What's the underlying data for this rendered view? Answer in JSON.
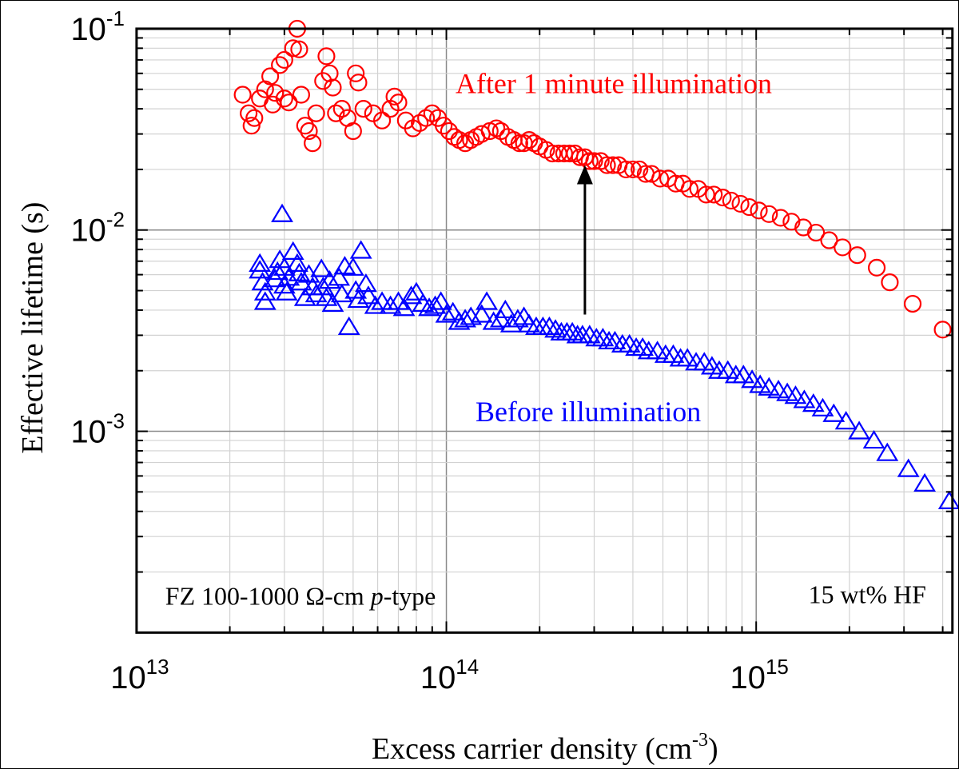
{
  "chart_data": {
    "type": "scatter",
    "x_scale": "log",
    "y_scale": "log",
    "xlim": [
      10000000000000.0,
      4300000000000000.0
    ],
    "ylim": [
      0.0001,
      0.1
    ],
    "xlabel": "Excess carrier density (cm",
    "xlabel_sup": "-3",
    "xlabel_tail": ")",
    "ylabel": "Effective lifetime (s)",
    "x_ticks": [
      {
        "value": 10000000000000.0,
        "base": "10",
        "exp": "13"
      },
      {
        "value": 100000000000000.0,
        "base": "10",
        "exp": "14"
      },
      {
        "value": 1000000000000000.0,
        "base": "10",
        "exp": "15"
      }
    ],
    "y_ticks": [
      {
        "value": 0.1,
        "base": "10",
        "exp": "-1"
      },
      {
        "value": 0.01,
        "base": "10",
        "exp": "-2"
      },
      {
        "value": 0.001,
        "base": "10",
        "exp": "-3"
      }
    ],
    "grid": true,
    "annotations": {
      "after_label": "After 1 minute illumination",
      "before_label": "Before illumination",
      "sample_prefix": "FZ 100-1000 ",
      "sample_omega": "Ω",
      "sample_mid": "-cm ",
      "sample_italic": "p",
      "sample_suffix": "-type",
      "solution": "15 wt% HF"
    },
    "arrow": {
      "x": 280000000000000.0,
      "y_from": 0.0038,
      "y_to": 0.021
    },
    "series": [
      {
        "name": "After 1 minute illumination",
        "marker": "circle",
        "color": "#ff0000",
        "points": [
          [
            22000000000000.0,
            0.047
          ],
          [
            23000000000000.0,
            0.038
          ],
          [
            23500000000000.0,
            0.033
          ],
          [
            24000000000000.0,
            0.036
          ],
          [
            25000000000000.0,
            0.045
          ],
          [
            26000000000000.0,
            0.05
          ],
          [
            27000000000000.0,
            0.058
          ],
          [
            27500000000000.0,
            0.042
          ],
          [
            28000000000000.0,
            0.048
          ],
          [
            29000000000000.0,
            0.066
          ],
          [
            30000000000000.0,
            0.07
          ],
          [
            30000000000000.0,
            0.045
          ],
          [
            31000000000000.0,
            0.043
          ],
          [
            32000000000000.0,
            0.08
          ],
          [
            33000000000000.0,
            0.1
          ],
          [
            33500000000000.0,
            0.079
          ],
          [
            34000000000000.0,
            0.047
          ],
          [
            35000000000000.0,
            0.033
          ],
          [
            36000000000000.0,
            0.031
          ],
          [
            37000000000000.0,
            0.027
          ],
          [
            38000000000000.0,
            0.038
          ],
          [
            40000000000000.0,
            0.055
          ],
          [
            41000000000000.0,
            0.073
          ],
          [
            42000000000000.0,
            0.06
          ],
          [
            43000000000000.0,
            0.051
          ],
          [
            44000000000000.0,
            0.038
          ],
          [
            46000000000000.0,
            0.04
          ],
          [
            48000000000000.0,
            0.036
          ],
          [
            50000000000000.0,
            0.031
          ],
          [
            51000000000000.0,
            0.06
          ],
          [
            52000000000000.0,
            0.054
          ],
          [
            54000000000000.0,
            0.04
          ],
          [
            58000000000000.0,
            0.038
          ],
          [
            62000000000000.0,
            0.035
          ],
          [
            66000000000000.0,
            0.04
          ],
          [
            68000000000000.0,
            0.046
          ],
          [
            70000000000000.0,
            0.043
          ],
          [
            74000000000000.0,
            0.035
          ],
          [
            78000000000000.0,
            0.032
          ],
          [
            82000000000000.0,
            0.034
          ],
          [
            86000000000000.0,
            0.036
          ],
          [
            90000000000000.0,
            0.038
          ],
          [
            94000000000000.0,
            0.036
          ],
          [
            98000000000000.0,
            0.033
          ],
          [
            102000000000000.0,
            0.031
          ],
          [
            106000000000000.0,
            0.029
          ],
          [
            110000000000000.0,
            0.028
          ],
          [
            115000000000000.0,
            0.027
          ],
          [
            120000000000000.0,
            0.028
          ],
          [
            125000000000000.0,
            0.029
          ],
          [
            130000000000000.0,
            0.03
          ],
          [
            138000000000000.0,
            0.031
          ],
          [
            145000000000000.0,
            0.032
          ],
          [
            150000000000000.0,
            0.031
          ],
          [
            158000000000000.0,
            0.029
          ],
          [
            165000000000000.0,
            0.028
          ],
          [
            172000000000000.0,
            0.027
          ],
          [
            178000000000000.0,
            0.027
          ],
          [
            185000000000000.0,
            0.028
          ],
          [
            192000000000000.0,
            0.027
          ],
          [
            200000000000000.0,
            0.026
          ],
          [
            210000000000000.0,
            0.025
          ],
          [
            220000000000000.0,
            0.024
          ],
          [
            230000000000000.0,
            0.024
          ],
          [
            240000000000000.0,
            0.024
          ],
          [
            250000000000000.0,
            0.024
          ],
          [
            260000000000000.0,
            0.024
          ],
          [
            270000000000000.0,
            0.023
          ],
          [
            280000000000000.0,
            0.023
          ],
          [
            290000000000000.0,
            0.022
          ],
          [
            300000000000000.0,
            0.022
          ],
          [
            315000000000000.0,
            0.022
          ],
          [
            330000000000000.0,
            0.021
          ],
          [
            345000000000000.0,
            0.021
          ],
          [
            360000000000000.0,
            0.021
          ],
          [
            380000000000000.0,
            0.02
          ],
          [
            400000000000000.0,
            0.02
          ],
          [
            420000000000000.0,
            0.02
          ],
          [
            440000000000000.0,
            0.019
          ],
          [
            460000000000000.0,
            0.019
          ],
          [
            490000000000000.0,
            0.018
          ],
          [
            520000000000000.0,
            0.018
          ],
          [
            550000000000000.0,
            0.017
          ],
          [
            580000000000000.0,
            0.017
          ],
          [
            610000000000000.0,
            0.016
          ],
          [
            650000000000000.0,
            0.016
          ],
          [
            690000000000000.0,
            0.015
          ],
          [
            730000000000000.0,
            0.015
          ],
          [
            780000000000000.0,
            0.0145
          ],
          [
            830000000000000.0,
            0.014
          ],
          [
            890000000000000.0,
            0.0135
          ],
          [
            950000000000000.0,
            0.013
          ],
          [
            1020000000000000.0,
            0.0125
          ],
          [
            1100000000000000.0,
            0.012
          ],
          [
            1200000000000000.0,
            0.0115
          ],
          [
            1300000000000000.0,
            0.011
          ],
          [
            1420000000000000.0,
            0.0103
          ],
          [
            1560000000000000.0,
            0.0097
          ],
          [
            1720000000000000.0,
            0.0089
          ],
          [
            1900000000000000.0,
            0.0082
          ],
          [
            2120000000000000.0,
            0.0075
          ],
          [
            2450000000000000.0,
            0.0065
          ],
          [
            2700000000000000.0,
            0.0055
          ],
          [
            3200000000000000.0,
            0.0043
          ],
          [
            4000000000000000.0,
            0.0032
          ]
        ]
      },
      {
        "name": "Before illumination",
        "marker": "triangle",
        "color": "#0000ff",
        "points": [
          [
            25000000000000.0,
            0.0068
          ],
          [
            25000000000000.0,
            0.0063
          ],
          [
            25500000000000.0,
            0.0055
          ],
          [
            26000000000000.0,
            0.0049
          ],
          [
            26000000000000.0,
            0.0044
          ],
          [
            28000000000000.0,
            0.0057
          ],
          [
            28500000000000.0,
            0.0062
          ],
          [
            29000000000000.0,
            0.0071
          ],
          [
            29500000000000.0,
            0.012
          ],
          [
            30000000000000.0,
            0.0065
          ],
          [
            30000000000000.0,
            0.0053
          ],
          [
            30500000000000.0,
            0.0049
          ],
          [
            31000000000000.0,
            0.0058
          ],
          [
            32000000000000.0,
            0.0078
          ],
          [
            33000000000000.0,
            0.0068
          ],
          [
            33500000000000.0,
            0.0061
          ],
          [
            34000000000000.0,
            0.0055
          ],
          [
            35000000000000.0,
            0.0046
          ],
          [
            36000000000000.0,
            0.006
          ],
          [
            37000000000000.0,
            0.0052
          ],
          [
            38000000000000.0,
            0.0048
          ],
          [
            39500000000000.0,
            0.0064
          ],
          [
            40000000000000.0,
            0.0052
          ],
          [
            41000000000000.0,
            0.0046
          ],
          [
            42000000000000.0,
            0.0056
          ],
          [
            43000000000000.0,
            0.0043
          ],
          [
            45000000000000.0,
            0.0058
          ],
          [
            46000000000000.0,
            0.0048
          ],
          [
            47000000000000.0,
            0.0066
          ],
          [
            48500000000000.0,
            0.0033
          ],
          [
            50000000000000.0,
            0.0065
          ],
          [
            51000000000000.0,
            0.005
          ],
          [
            52000000000000.0,
            0.0045
          ],
          [
            53000000000000.0,
            0.0079
          ],
          [
            55000000000000.0,
            0.0054
          ],
          [
            56000000000000.0,
            0.0047
          ],
          [
            59000000000000.0,
            0.0042
          ],
          [
            62000000000000.0,
            0.0044
          ],
          [
            66000000000000.0,
            0.0042
          ],
          [
            70000000000000.0,
            0.0044
          ],
          [
            73000000000000.0,
            0.0041
          ],
          [
            77000000000000.0,
            0.0047
          ],
          [
            80000000000000.0,
            0.0049
          ],
          [
            84000000000000.0,
            0.0043
          ],
          [
            88000000000000.0,
            0.0041
          ],
          [
            92000000000000.0,
            0.0042
          ],
          [
            96000000000000.0,
            0.0044
          ],
          [
            100000000000000.0,
            0.0038
          ],
          [
            105000000000000.0,
            0.0039
          ],
          [
            110000000000000.0,
            0.0035
          ],
          [
            115000000000000.0,
            0.0036
          ],
          [
            120000000000000.0,
            0.0037
          ],
          [
            130000000000000.0,
            0.0038
          ],
          [
            135000000000000.0,
            0.0044
          ],
          [
            142000000000000.0,
            0.0035
          ],
          [
            150000000000000.0,
            0.0036
          ],
          [
            155000000000000.0,
            0.004
          ],
          [
            162000000000000.0,
            0.0034
          ],
          [
            170000000000000.0,
            0.0036
          ],
          [
            178000000000000.0,
            0.0037
          ],
          [
            185000000000000.0,
            0.0034
          ],
          [
            195000000000000.0,
            0.0033
          ],
          [
            205000000000000.0,
            0.0033
          ],
          [
            215000000000000.0,
            0.0033
          ],
          [
            225000000000000.0,
            0.0032
          ],
          [
            235000000000000.0,
            0.0031
          ],
          [
            245000000000000.0,
            0.0031
          ],
          [
            255000000000000.0,
            0.0031
          ],
          [
            265000000000000.0,
            0.003
          ],
          [
            275000000000000.0,
            0.003
          ],
          [
            290000000000000.0,
            0.003
          ],
          [
            305000000000000.0,
            0.0029
          ],
          [
            320000000000000.0,
            0.0029
          ],
          [
            335000000000000.0,
            0.0028
          ],
          [
            350000000000000.0,
            0.0028
          ],
          [
            370000000000000.0,
            0.0027
          ],
          [
            390000000000000.0,
            0.0027
          ],
          [
            410000000000000.0,
            0.0026
          ],
          [
            430000000000000.0,
            0.0026
          ],
          [
            450000000000000.0,
            0.0025
          ],
          [
            480000000000000.0,
            0.0025
          ],
          [
            510000000000000.0,
            0.0024
          ],
          [
            540000000000000.0,
            0.0024
          ],
          [
            570000000000000.0,
            0.0023
          ],
          [
            600000000000000.0,
            0.0023
          ],
          [
            640000000000000.0,
            0.0022
          ],
          [
            680000000000000.0,
            0.0022
          ],
          [
            720000000000000.0,
            0.0021
          ],
          [
            760000000000000.0,
            0.002
          ],
          [
            810000000000000.0,
            0.002
          ],
          [
            860000000000000.0,
            0.0019
          ],
          [
            910000000000000.0,
            0.0019
          ],
          [
            970000000000000.0,
            0.0018
          ],
          [
            1030000000000000.0,
            0.0017
          ],
          [
            1100000000000000.0,
            0.00165
          ],
          [
            1180000000000000.0,
            0.0016
          ],
          [
            1260000000000000.0,
            0.00155
          ],
          [
            1340000000000000.0,
            0.0015
          ],
          [
            1430000000000000.0,
            0.00143
          ],
          [
            1530000000000000.0,
            0.00137
          ],
          [
            1640000000000000.0,
            0.0013
          ],
          [
            1780000000000000.0,
            0.00122
          ],
          [
            1950000000000000.0,
            0.00112
          ],
          [
            2150000000000000.0,
            0.001
          ],
          [
            2400000000000000.0,
            0.0009
          ],
          [
            2650000000000000.0,
            0.00078
          ],
          [
            3100000000000000.0,
            0.00065
          ],
          [
            3500000000000000.0,
            0.00055
          ],
          [
            4200000000000000.0,
            0.00045
          ]
        ]
      }
    ]
  }
}
